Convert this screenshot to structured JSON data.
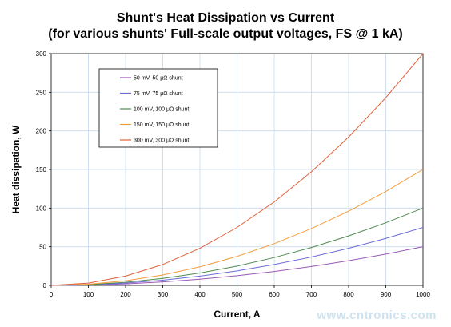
{
  "chart_data": {
    "type": "line",
    "title": "Shunt's Heat Dissipation vs Current",
    "subtitle": "(for various shunts' Full-scale output voltages, FS @ 1 kA)",
    "xlabel": "Current, A",
    "ylabel": "Heat dissipation, W",
    "xlim": [
      0,
      1000
    ],
    "ylim": [
      0,
      300
    ],
    "xticks": [
      0,
      100,
      200,
      300,
      400,
      500,
      600,
      700,
      800,
      900,
      1000
    ],
    "yticks": [
      0,
      50,
      100,
      150,
      200,
      250,
      300
    ],
    "grid": true,
    "legend_position": "top-left",
    "x": [
      0,
      100,
      200,
      300,
      400,
      500,
      600,
      700,
      800,
      900,
      1000
    ],
    "series": [
      {
        "name": "50 mV, 50 μΩ shunt",
        "color": "#9b59b6",
        "values": [
          0,
          0.5,
          2,
          4.5,
          8,
          12.5,
          18,
          24.5,
          32,
          40.5,
          50
        ]
      },
      {
        "name": "75 mV, 75 μΩ shunt",
        "color": "#6c6cd8",
        "values": [
          0,
          0.75,
          3,
          6.75,
          12,
          18.75,
          27,
          36.75,
          48,
          60.75,
          75
        ]
      },
      {
        "name": "100 mV, 100 μΩ shunt",
        "color": "#4f8a4f",
        "values": [
          0,
          1,
          4,
          9,
          16,
          25,
          36,
          49,
          64,
          81,
          100
        ]
      },
      {
        "name": "150 mV, 150 μΩ shunt",
        "color": "#f39c3c",
        "values": [
          0,
          1.5,
          6,
          13.5,
          24,
          37.5,
          54,
          73.5,
          96,
          121.5,
          150
        ]
      },
      {
        "name": "300 mV, 300 μΩ shunt",
        "color": "#e0603a",
        "values": [
          0,
          3,
          12,
          27,
          48,
          75,
          108,
          147,
          192,
          243,
          300
        ]
      }
    ],
    "watermark": "www.cntronics.com"
  }
}
